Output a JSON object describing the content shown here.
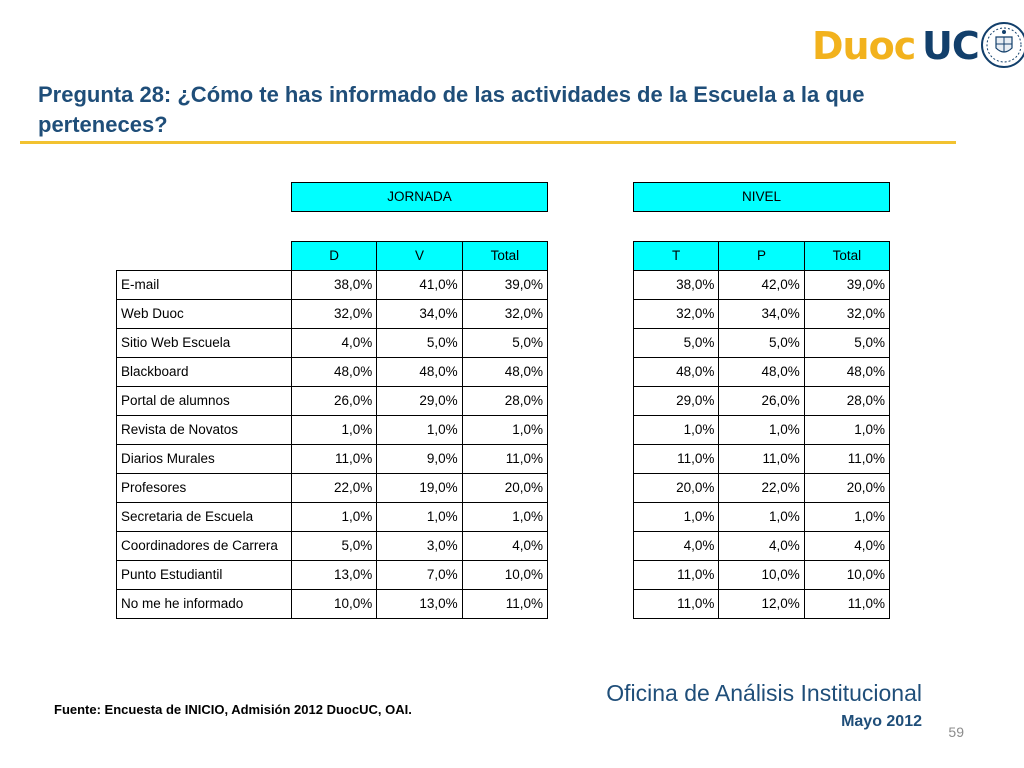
{
  "logo": {
    "part1": "Duoc",
    "part2": "UC"
  },
  "title": "Pregunta 28: ¿Cómo te has informado de las actividades de la Escuela a la que perteneces?",
  "groups": {
    "jornada": "JORNADA",
    "nivel": "NIVEL"
  },
  "columns_jornada": [
    "D",
    "V",
    "Total"
  ],
  "columns_nivel": [
    "T",
    "P",
    "Total"
  ],
  "rows": [
    {
      "label": "E-mail",
      "jornada": [
        "38,0%",
        "41,0%",
        "39,0%"
      ],
      "nivel": [
        "38,0%",
        "42,0%",
        "39,0%"
      ]
    },
    {
      "label": "Web Duoc",
      "jornada": [
        "32,0%",
        "34,0%",
        "32,0%"
      ],
      "nivel": [
        "32,0%",
        "34,0%",
        "32,0%"
      ]
    },
    {
      "label": "Sitio Web Escuela",
      "jornada": [
        "4,0%",
        "5,0%",
        "5,0%"
      ],
      "nivel": [
        "5,0%",
        "5,0%",
        "5,0%"
      ]
    },
    {
      "label": "Blackboard",
      "jornada": [
        "48,0%",
        "48,0%",
        "48,0%"
      ],
      "nivel": [
        "48,0%",
        "48,0%",
        "48,0%"
      ]
    },
    {
      "label": "Portal de alumnos",
      "jornada": [
        "26,0%",
        "29,0%",
        "28,0%"
      ],
      "nivel": [
        "29,0%",
        "26,0%",
        "28,0%"
      ]
    },
    {
      "label": "Revista de Novatos",
      "jornada": [
        "1,0%",
        "1,0%",
        "1,0%"
      ],
      "nivel": [
        "1,0%",
        "1,0%",
        "1,0%"
      ]
    },
    {
      "label": "Diarios Murales",
      "jornada": [
        "11,0%",
        "9,0%",
        "11,0%"
      ],
      "nivel": [
        "11,0%",
        "11,0%",
        "11,0%"
      ]
    },
    {
      "label": "Profesores",
      "jornada": [
        "22,0%",
        "19,0%",
        "20,0%"
      ],
      "nivel": [
        "20,0%",
        "22,0%",
        "20,0%"
      ]
    },
    {
      "label": "Secretaria de Escuela",
      "jornada": [
        "1,0%",
        "1,0%",
        "1,0%"
      ],
      "nivel": [
        "1,0%",
        "1,0%",
        "1,0%"
      ]
    },
    {
      "label": "Coordinadores de Carrera",
      "jornada": [
        "5,0%",
        "3,0%",
        "4,0%"
      ],
      "nivel": [
        "4,0%",
        "4,0%",
        "4,0%"
      ]
    },
    {
      "label": "Punto Estudiantil",
      "jornada": [
        "13,0%",
        "7,0%",
        "10,0%"
      ],
      "nivel": [
        "11,0%",
        "10,0%",
        "10,0%"
      ]
    },
    {
      "label": "No me he informado",
      "jornada": [
        "10,0%",
        "13,0%",
        "11,0%"
      ],
      "nivel": [
        "11,0%",
        "12,0%",
        "11,0%"
      ]
    }
  ],
  "footer": {
    "source": "Fuente: Encuesta de INICIO, Admisión 2012 DuocUC, OAI.",
    "office": "Oficina de Análisis Institucional",
    "date": "Mayo 2012",
    "page": "59"
  },
  "colors": {
    "header_fill": "#00ffff",
    "title": "#1f4e79",
    "rule": "#f2c230",
    "logo_gold": "#f2b21d",
    "logo_blue": "#123f6b"
  }
}
